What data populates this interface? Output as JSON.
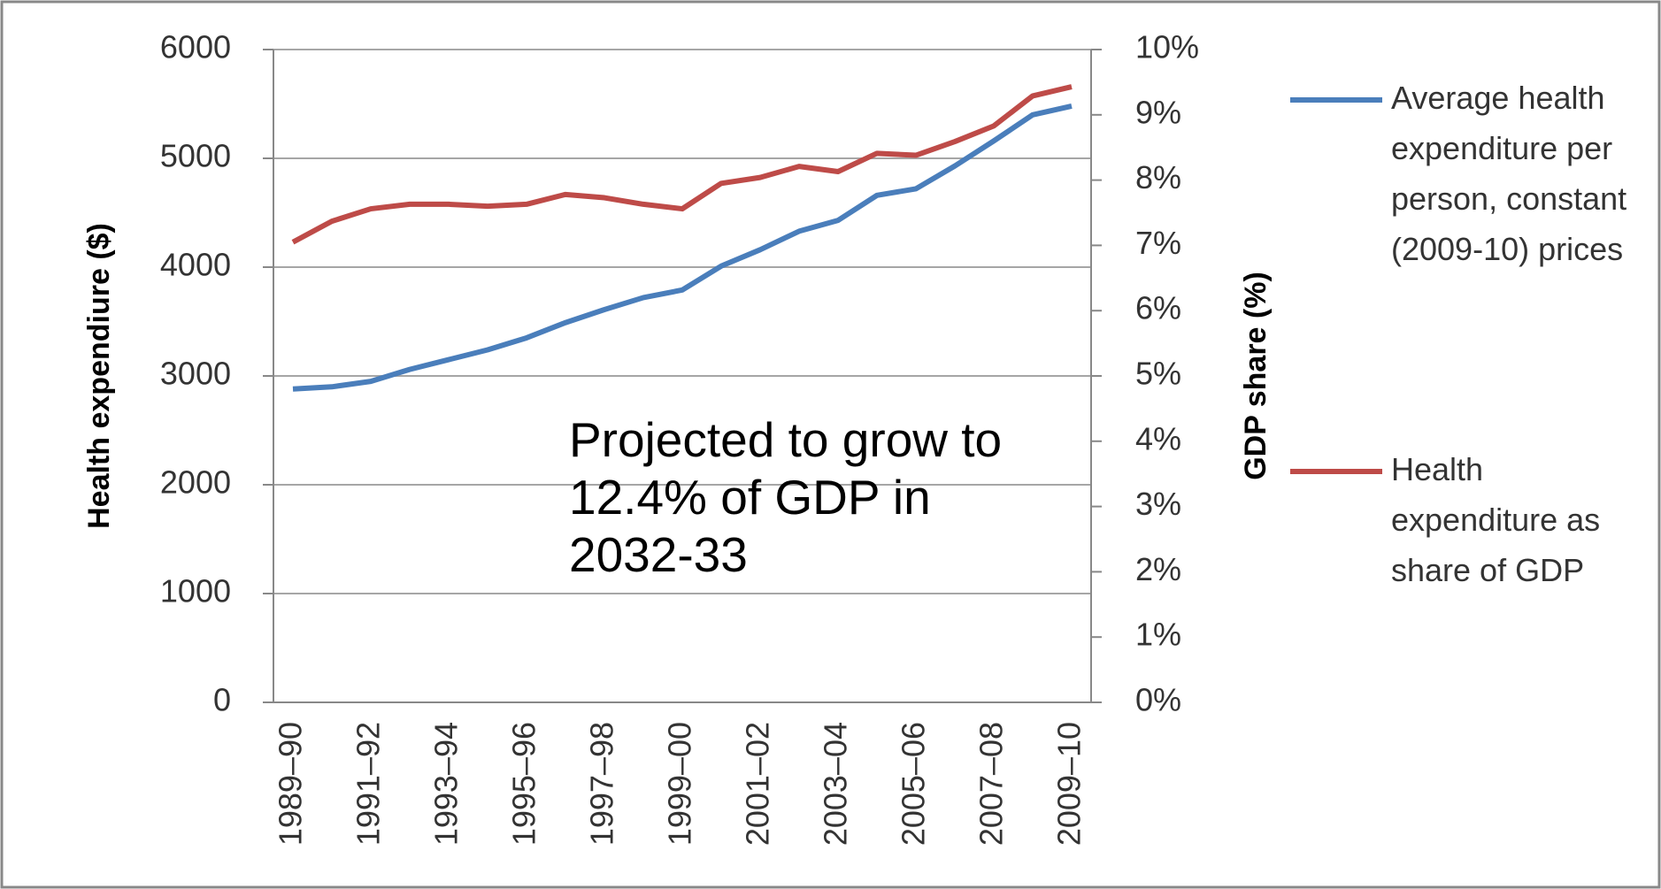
{
  "chart_data": {
    "type": "line",
    "categories": [
      "1989–90",
      null,
      "1991–92",
      null,
      "1993–94",
      null,
      "1995–96",
      null,
      "1997–98",
      null,
      "1999–00",
      null,
      "2001–02",
      null,
      "2003–04",
      null,
      "2005–06",
      null,
      "2007–08",
      null,
      "2009–10"
    ],
    "series": [
      {
        "name": "Average health expenditure per person, constant (2009-10) prices",
        "color": "#4a7ebb",
        "values": [
          2880,
          2900,
          2950,
          3060,
          3150,
          3240,
          3350,
          3490,
          3610,
          3720,
          3790,
          4010,
          4160,
          4330,
          4430,
          4660,
          4720,
          4930,
          5160,
          5400,
          5480
        ]
      },
      {
        "name": "Health expenditure as share of GDP",
        "color": "#be4b48",
        "axis": "y2",
        "values": [
          7.05,
          7.37,
          7.56,
          7.63,
          7.63,
          7.6,
          7.63,
          7.78,
          7.73,
          7.63,
          7.56,
          7.95,
          8.04,
          8.21,
          8.13,
          8.41,
          8.38,
          8.59,
          8.83,
          9.29,
          9.43
        ]
      }
    ],
    "ylabel": "Health expendiure ($)",
    "y2label": "GDP share (%)",
    "ylim": [
      0,
      6000
    ],
    "yticks": [
      0,
      1000,
      2000,
      3000,
      4000,
      5000,
      6000
    ],
    "y2lim": [
      0,
      10
    ],
    "y2ticks": [
      {
        "value": 0,
        "label": "0%"
      },
      {
        "value": 1,
        "label": "1%"
      },
      {
        "value": 2,
        "label": "2%"
      },
      {
        "value": 3,
        "label": "3%"
      },
      {
        "value": 4,
        "label": "4%"
      },
      {
        "value": 5,
        "label": "5%"
      },
      {
        "value": 6,
        "label": "6%"
      },
      {
        "value": 7,
        "label": "7%"
      },
      {
        "value": 8,
        "label": "8%"
      },
      {
        "value": 9,
        "label": "9%"
      },
      {
        "value": 10,
        "label": "10%"
      }
    ],
    "annotation": "Projected to grow to 12.4% of GDP in 2032-33",
    "grid": true,
    "legend": "right"
  }
}
